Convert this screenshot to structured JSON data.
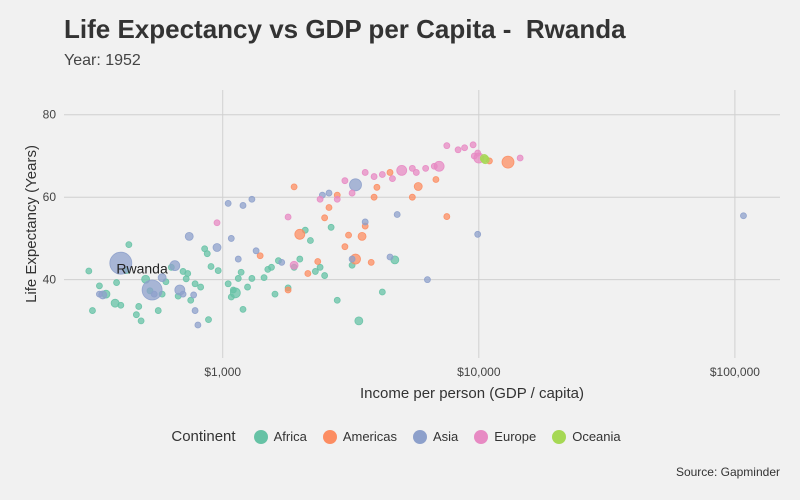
{
  "title": "Life Expectancy vs GDP per Capita -  Rwanda",
  "subtitle": "Year: 1952",
  "caption": "Source: Gapminder",
  "legend": {
    "title": "Continent",
    "items": [
      {
        "label": "Africa",
        "color": "#66c2a5"
      },
      {
        "label": "Americas",
        "color": "#fc8d62"
      },
      {
        "label": "Asia",
        "color": "#8da0cb"
      },
      {
        "label": "Europe",
        "color": "#e78ac3"
      },
      {
        "label": "Oceania",
        "color": "#a6d854"
      }
    ]
  },
  "chart_data": {
    "type": "scatter",
    "title": "Life Expectancy vs GDP per Capita -  Rwanda",
    "subtitle": "Year: 1952",
    "xlabel": "Income per person (GDP / capita)",
    "ylabel": "Life Expectancy (Years)",
    "xscale": "log",
    "xlim": [
      240,
      150000
    ],
    "ylim": [
      21,
      86
    ],
    "xticks": [
      1000,
      10000,
      100000
    ],
    "xtick_labels": [
      "$1,000",
      "$10,000",
      "$100,000"
    ],
    "yticks": [
      40,
      60,
      80
    ],
    "ytick_labels": [
      "40",
      "60",
      "80"
    ],
    "grid": true,
    "legend_position": "bottom",
    "highlight": {
      "label": "Rwanda",
      "x": 493,
      "y": 40.0
    },
    "series": [
      {
        "name": "Africa",
        "color": "#66c2a5",
        "points": [
          [
            300,
            42.1,
            3
          ],
          [
            310,
            32.5,
            3
          ],
          [
            330,
            38.5,
            3
          ],
          [
            350,
            36.5,
            4
          ],
          [
            380,
            34.3,
            4
          ],
          [
            385,
            39.3,
            3
          ],
          [
            400,
            33.8,
            3
          ],
          [
            420,
            42.2,
            3
          ],
          [
            430,
            48.5,
            3
          ],
          [
            460,
            31.5,
            3
          ],
          [
            470,
            33.5,
            3
          ],
          [
            480,
            30.0,
            3
          ],
          [
            500,
            40.1,
            4
          ],
          [
            520,
            37.3,
            3
          ],
          [
            560,
            32.5,
            3
          ],
          [
            580,
            36.5,
            3
          ],
          [
            600,
            39.5,
            3
          ],
          [
            630,
            43.0,
            3
          ],
          [
            670,
            36.0,
            3
          ],
          [
            700,
            42.0,
            3
          ],
          [
            720,
            40.2,
            3
          ],
          [
            730,
            41.5,
            3
          ],
          [
            750,
            35.0,
            3
          ],
          [
            780,
            39.0,
            3
          ],
          [
            820,
            38.2,
            3
          ],
          [
            850,
            47.5,
            3
          ],
          [
            870,
            46.3,
            3
          ],
          [
            880,
            30.3,
            3
          ],
          [
            900,
            43.2,
            3
          ],
          [
            960,
            42.2,
            3
          ],
          [
            1050,
            39.0,
            3
          ],
          [
            1080,
            35.8,
            3
          ],
          [
            1100,
            37.5,
            3
          ],
          [
            1120,
            36.8,
            5
          ],
          [
            1150,
            40.3,
            3
          ],
          [
            1180,
            41.8,
            3
          ],
          [
            1200,
            32.8,
            3
          ],
          [
            1250,
            38.2,
            3
          ],
          [
            1300,
            40.3,
            3
          ],
          [
            1450,
            40.5,
            3
          ],
          [
            1500,
            42.5,
            3
          ],
          [
            1550,
            43.0,
            3
          ],
          [
            1600,
            36.5,
            3
          ],
          [
            1650,
            44.6,
            3
          ],
          [
            1800,
            38.0,
            3
          ],
          [
            1900,
            43.0,
            3
          ],
          [
            2000,
            45.0,
            3
          ],
          [
            2200,
            49.5,
            3
          ],
          [
            2300,
            42.0,
            3
          ],
          [
            2400,
            43.0,
            3
          ],
          [
            2500,
            41.0,
            3
          ],
          [
            2800,
            35.0,
            3
          ],
          [
            3200,
            43.5,
            3
          ],
          [
            3400,
            30.0,
            4
          ],
          [
            4200,
            37.0,
            3
          ],
          [
            4700,
            44.8,
            4
          ],
          [
            2100,
            52.0,
            3
          ],
          [
            2650,
            52.7,
            3
          ]
        ]
      },
      {
        "name": "Americas",
        "color": "#fc8d62",
        "points": [
          [
            1400,
            45.8,
            3
          ],
          [
            1800,
            37.5,
            3
          ],
          [
            1900,
            62.5,
            3
          ],
          [
            2000,
            51.0,
            5
          ],
          [
            2150,
            41.5,
            3
          ],
          [
            2350,
            44.4,
            3
          ],
          [
            2500,
            55.0,
            3
          ],
          [
            2600,
            57.5,
            3
          ],
          [
            2800,
            60.5,
            3
          ],
          [
            3000,
            48.0,
            3
          ],
          [
            3100,
            50.8,
            3
          ],
          [
            3300,
            45.0,
            5
          ],
          [
            3500,
            50.5,
            4
          ],
          [
            3600,
            53.0,
            3
          ],
          [
            3800,
            44.2,
            3
          ],
          [
            3900,
            60.0,
            3
          ],
          [
            4000,
            62.4,
            3
          ],
          [
            4500,
            66.0,
            3
          ],
          [
            5500,
            60.0,
            3
          ],
          [
            5800,
            62.6,
            4
          ],
          [
            6800,
            64.3,
            3
          ],
          [
            7500,
            55.3,
            3
          ],
          [
            11000,
            68.8,
            3
          ],
          [
            13000,
            68.5,
            6
          ]
        ]
      },
      {
        "name": "Asia",
        "color": "#8da0cb",
        "points": [
          [
            330,
            36.5,
            3
          ],
          [
            340,
            36.3,
            4
          ],
          [
            400,
            44.0,
            11
          ],
          [
            530,
            37.5,
            10
          ],
          [
            540,
            36.5,
            3
          ],
          [
            580,
            40.5,
            4
          ],
          [
            650,
            43.4,
            5
          ],
          [
            680,
            37.5,
            5
          ],
          [
            700,
            36.5,
            3
          ],
          [
            740,
            50.5,
            4
          ],
          [
            770,
            36.3,
            3
          ],
          [
            780,
            32.5,
            3
          ],
          [
            800,
            29.0,
            3
          ],
          [
            950,
            47.8,
            4
          ],
          [
            1050,
            58.5,
            3
          ],
          [
            1080,
            50.0,
            3
          ],
          [
            1150,
            45.0,
            3
          ],
          [
            1200,
            58.0,
            3
          ],
          [
            1300,
            59.5,
            3
          ],
          [
            1350,
            47.0,
            3
          ],
          [
            1700,
            44.2,
            3
          ],
          [
            2450,
            60.5,
            3
          ],
          [
            2600,
            61.0,
            3
          ],
          [
            3200,
            45.0,
            3
          ],
          [
            3300,
            63.0,
            6
          ],
          [
            3600,
            54.0,
            3
          ],
          [
            4500,
            45.5,
            3
          ],
          [
            4800,
            55.8,
            3
          ],
          [
            6300,
            40.0,
            3
          ],
          [
            9900,
            51.0,
            3
          ],
          [
            108000,
            55.5,
            3
          ]
        ]
      },
      {
        "name": "Europe",
        "color": "#e78ac3",
        "points": [
          [
            950,
            53.8,
            3
          ],
          [
            1800,
            55.2,
            3
          ],
          [
            1900,
            43.5,
            4
          ],
          [
            2400,
            59.5,
            3
          ],
          [
            2800,
            59.5,
            3
          ],
          [
            3000,
            64.0,
            3
          ],
          [
            3200,
            61.0,
            3
          ],
          [
            3600,
            66.0,
            3
          ],
          [
            3900,
            65.0,
            3
          ],
          [
            4200,
            65.5,
            3
          ],
          [
            4600,
            64.5,
            3
          ],
          [
            5000,
            66.5,
            5
          ],
          [
            5500,
            67.0,
            3
          ],
          [
            5700,
            66.0,
            3
          ],
          [
            6200,
            67.0,
            3
          ],
          [
            6700,
            67.5,
            3
          ],
          [
            7000,
            67.5,
            5
          ],
          [
            7500,
            72.5,
            3
          ],
          [
            8300,
            71.5,
            3
          ],
          [
            8800,
            72.0,
            3
          ],
          [
            9500,
            72.7,
            3
          ],
          [
            9600,
            70.0,
            3
          ],
          [
            9900,
            70.7,
            3
          ],
          [
            10000,
            69.5,
            5
          ],
          [
            14500,
            69.5,
            3
          ]
        ]
      },
      {
        "name": "Oceania",
        "color": "#a6d854",
        "points": [
          [
            10500,
            69.4,
            4
          ],
          [
            10600,
            69.1,
            4
          ]
        ]
      }
    ]
  }
}
